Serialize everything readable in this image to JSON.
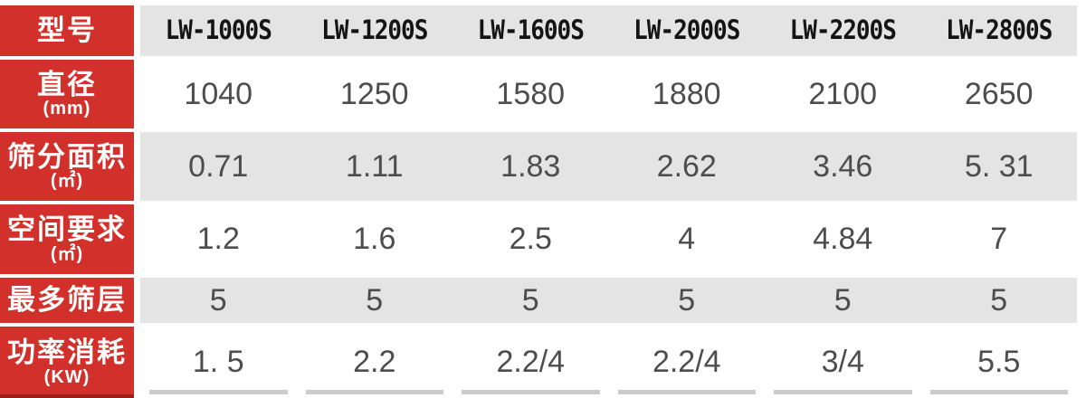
{
  "colors": {
    "accent_red": "#d2302b",
    "band_gray": "#e4e4e4",
    "value_text": "#4d4d4d",
    "model_text": "#141414"
  },
  "table": {
    "corner_label": "型号",
    "models": [
      "LW-1000S",
      "LW-1200S",
      "LW-1600S",
      "LW-2000S",
      "LW-2200S",
      "LW-2800S"
    ],
    "rows": [
      {
        "label": "直径",
        "unit": "(mm)",
        "values": [
          "1040",
          "1250",
          "1580",
          "1880",
          "2100",
          "2650"
        ]
      },
      {
        "label": "筛分面积",
        "unit": "(㎡)",
        "values": [
          "0.71",
          "1.11",
          "1.83",
          "2.62",
          "3.46",
          "5. 31"
        ]
      },
      {
        "label": "空间要求",
        "unit": "(㎡)",
        "values": [
          "1.2",
          "1.6",
          "2.5",
          "4",
          "4.84",
          "7"
        ]
      },
      {
        "label": "最多筛层",
        "unit": "",
        "values": [
          "5",
          "5",
          "5",
          "5",
          "5",
          "5"
        ]
      },
      {
        "label": "功率消耗",
        "unit": "(KW)",
        "values": [
          "1. 5",
          "2.2",
          "2.2/4",
          "2.2/4",
          "3/4",
          "5.5"
        ]
      }
    ]
  },
  "chart_data": {
    "type": "table",
    "title": "",
    "columns": [
      "型号",
      "LW-1000S",
      "LW-1200S",
      "LW-1600S",
      "LW-2000S",
      "LW-2200S",
      "LW-2800S"
    ],
    "rows": [
      [
        "直径 (mm)",
        "1040",
        "1250",
        "1580",
        "1880",
        "2100",
        "2650"
      ],
      [
        "筛分面积 (㎡)",
        "0.71",
        "1.11",
        "1.83",
        "2.62",
        "3.46",
        "5.31"
      ],
      [
        "空间要求 (㎡)",
        "1.2",
        "1.6",
        "2.5",
        "4",
        "4.84",
        "7"
      ],
      [
        "最多筛层",
        "5",
        "5",
        "5",
        "5",
        "5",
        "5"
      ],
      [
        "功率消耗 (KW)",
        "1.5",
        "2.2",
        "2.2/4",
        "2.2/4",
        "3/4",
        "5.5"
      ]
    ],
    "layout_hints": {
      "header_column_bg": "#d2302b",
      "alternating_band_bg": [
        "#e4e4e4",
        "#ffffff"
      ],
      "grid": "white gaps between rows, no vertical gridlines in data area"
    }
  }
}
